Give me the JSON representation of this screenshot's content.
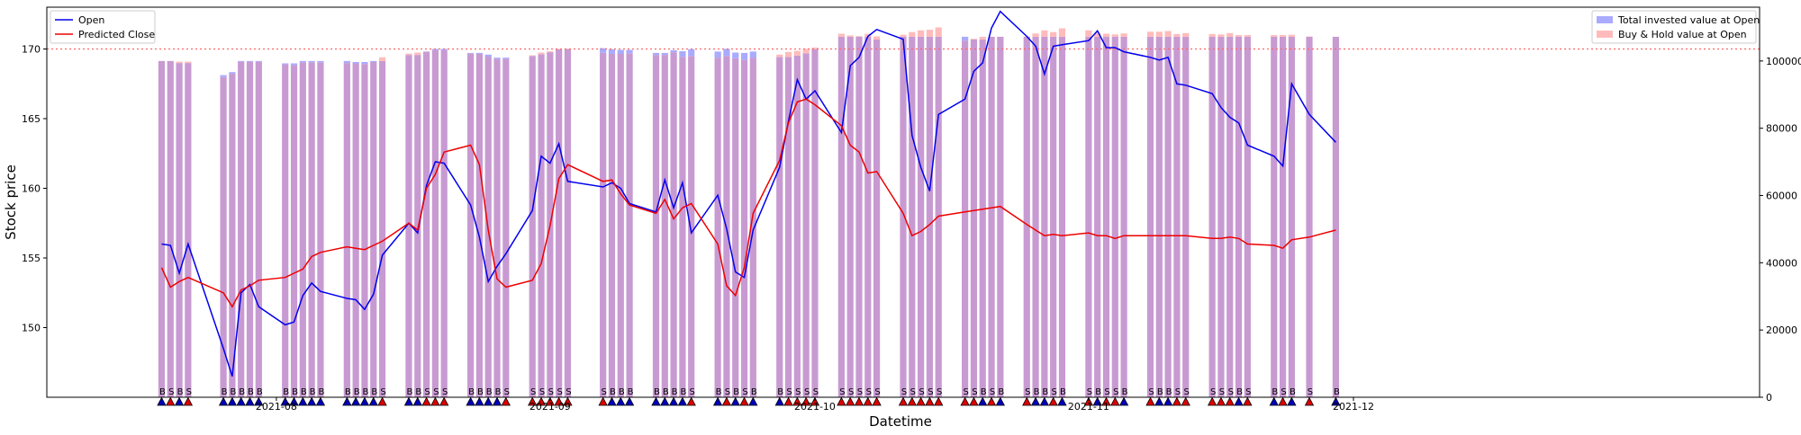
{
  "chart_data": {
    "type": "bar+line",
    "xlabel": "Datetime",
    "ylabel": "Stock price",
    "left_ylim": [
      145,
      173
    ],
    "right_ylim": [
      0,
      116000
    ],
    "left_yticks": [
      150,
      155,
      160,
      165,
      170
    ],
    "right_yticks": [
      0,
      20000,
      40000,
      60000,
      80000,
      100000
    ],
    "right_ytick_labels": [
      "0",
      "20000",
      "40000",
      "60000",
      "80000",
      "100000"
    ],
    "x_tick_labels": [
      "2021-08",
      "2021-09",
      "2021-10",
      "2021-11",
      "2021-12"
    ],
    "reference_line": {
      "left_value": 170,
      "right_value": 100000,
      "color": "#ff6666",
      "style": "dotted"
    },
    "legend_left": {
      "placement": "upper-left",
      "entries": [
        "Open",
        "Predicted Close"
      ]
    },
    "legend_right": {
      "placement": "upper-right",
      "entries": [
        "Total invested value at Open",
        "Buy & Hold value at Open"
      ]
    },
    "colors": {
      "open": "#0000ee",
      "predicted": "#ee0000",
      "invested": "#aaaaff",
      "buyhold": "#ffbbbb",
      "overlap": "#c89ad2",
      "buy_marker": "#0000bb",
      "sell_marker": "#dd0000"
    },
    "dates": [
      "07-19",
      "07-20",
      "07-21",
      "07-22",
      "07-26",
      "07-27",
      "07-28",
      "07-29",
      "07-30",
      "08-02",
      "08-03",
      "08-04",
      "08-05",
      "08-06",
      "08-09",
      "08-10",
      "08-11",
      "08-12",
      "08-13",
      "08-16",
      "08-17",
      "08-18",
      "08-19",
      "08-20",
      "08-23",
      "08-24",
      "08-25",
      "08-26",
      "08-27",
      "08-30",
      "08-31",
      "09-01",
      "09-02",
      "09-03",
      "09-07",
      "09-08",
      "09-09",
      "09-10",
      "09-13",
      "09-14",
      "09-15",
      "09-16",
      "09-17",
      "09-20",
      "09-21",
      "09-22",
      "09-23",
      "09-24",
      "09-27",
      "09-28",
      "09-29",
      "09-30",
      "10-01",
      "10-04",
      "10-05",
      "10-06",
      "10-07",
      "10-08",
      "10-11",
      "10-12",
      "10-13",
      "10-14",
      "10-15",
      "10-18",
      "10-19",
      "10-20",
      "10-21",
      "10-22",
      "10-25",
      "10-26",
      "10-27",
      "10-28",
      "10-29",
      "11-01",
      "11-02",
      "11-03",
      "11-04",
      "11-05",
      "11-08",
      "11-09",
      "11-10",
      "11-11",
      "11-12",
      "11-15",
      "11-16",
      "11-17",
      "11-18",
      "11-19",
      "11-22",
      "11-23",
      "11-24",
      "11-26",
      "11-29"
    ],
    "day_index": [
      0,
      1,
      2,
      3,
      7,
      8,
      9,
      10,
      11,
      14,
      15,
      16,
      17,
      18,
      21,
      22,
      23,
      24,
      25,
      28,
      29,
      30,
      31,
      32,
      35,
      36,
      37,
      38,
      39,
      42,
      43,
      44,
      45,
      46,
      50,
      51,
      52,
      53,
      56,
      57,
      58,
      59,
      60,
      63,
      64,
      65,
      66,
      67,
      70,
      71,
      72,
      73,
      74,
      77,
      78,
      79,
      80,
      81,
      84,
      85,
      86,
      87,
      88,
      91,
      92,
      93,
      94,
      95,
      98,
      99,
      100,
      101,
      102,
      105,
      106,
      107,
      108,
      109,
      112,
      113,
      114,
      115,
      116,
      119,
      120,
      121,
      122,
      123,
      126,
      127,
      128,
      130,
      133
    ],
    "open": [
      156.0,
      155.9,
      153.9,
      156.0,
      148.5,
      146.5,
      152.5,
      153.1,
      151.5,
      150.2,
      150.4,
      152.3,
      153.2,
      152.6,
      152.1,
      152.0,
      151.3,
      152.4,
      155.2,
      157.5,
      156.8,
      160.2,
      161.9,
      161.8,
      158.8,
      156.5,
      153.3,
      154.4,
      155.3,
      158.4,
      162.3,
      161.8,
      163.2,
      160.5,
      160.1,
      160.4,
      160.0,
      158.9,
      158.3,
      160.6,
      158.6,
      160.4,
      156.8,
      159.5,
      157.1,
      154.0,
      153.6,
      157.0,
      161.5,
      164.8,
      167.8,
      166.4,
      167.0,
      164.0,
      168.8,
      169.4,
      170.9,
      171.4,
      170.7,
      163.8,
      161.5,
      159.8,
      165.3,
      166.4,
      168.4,
      169.0,
      171.5,
      172.7,
      170.9,
      170.2,
      168.2,
      170.2,
      170.3,
      170.6,
      171.3,
      170.1,
      170.1,
      169.8,
      169.4,
      169.2,
      169.4,
      167.5,
      167.4,
      166.8,
      165.8,
      165.1,
      164.7,
      163.1,
      162.3,
      161.6,
      167.5,
      165.3,
      163.3
    ],
    "predicted_close": [
      154.3,
      152.9,
      153.3,
      153.6,
      152.5,
      151.5,
      152.7,
      153.0,
      153.4,
      153.6,
      153.9,
      154.2,
      155.1,
      155.4,
      155.8,
      155.7,
      155.6,
      155.9,
      156.2,
      157.5,
      157.0,
      160.0,
      161.0,
      162.6,
      163.1,
      161.7,
      157.0,
      153.5,
      152.9,
      153.4,
      154.6,
      157.3,
      160.7,
      161.7,
      160.5,
      160.6,
      159.6,
      158.8,
      158.2,
      159.2,
      157.8,
      158.6,
      158.9,
      156.0,
      153.0,
      152.3,
      154.3,
      158.2,
      162.0,
      164.7,
      166.2,
      166.4,
      166.0,
      164.5,
      163.1,
      162.6,
      161.1,
      161.2,
      158.2,
      156.6,
      156.9,
      157.4,
      158.0,
      158.3,
      158.4,
      158.5,
      158.6,
      158.7,
      157.4,
      157.0,
      156.6,
      156.7,
      156.6,
      156.8,
      156.6,
      156.6,
      156.4,
      156.6,
      156.6,
      156.6,
      156.6,
      156.6,
      156.6,
      156.4,
      156.4,
      156.5,
      156.4,
      156.0,
      155.9,
      155.7,
      156.3,
      156.5,
      157.0
    ],
    "total_invested": [
      100000,
      100000,
      99400,
      99400,
      95800,
      96700,
      100000,
      100000,
      100000,
      99300,
      99300,
      100000,
      100000,
      100000,
      100000,
      99700,
      99700,
      100000,
      100000,
      101800,
      101800,
      102800,
      103600,
      103600,
      102400,
      102400,
      101900,
      101000,
      101000,
      101500,
      102000,
      102600,
      103500,
      103500,
      103800,
      103500,
      103300,
      103300,
      102400,
      102400,
      103200,
      102900,
      103500,
      102800,
      103600,
      102500,
      102400,
      102800,
      101200,
      101200,
      101600,
      102300,
      103500,
      107200,
      107200,
      107200,
      107200,
      106400,
      107200,
      107200,
      107200,
      107200,
      107200,
      107200,
      106400,
      106400,
      107200,
      107200,
      107200,
      107200,
      107200,
      107200,
      107200,
      107200,
      107200,
      107200,
      107200,
      107200,
      107200,
      107200,
      107200,
      107200,
      107200,
      107200,
      107200,
      107200,
      107200,
      107200,
      107200,
      107200,
      107200,
      107200,
      107200
    ],
    "buy_hold": [
      100000,
      100000,
      99800,
      99800,
      95200,
      96200,
      99800,
      99800,
      99800,
      99000,
      98800,
      99600,
      99600,
      99600,
      99400,
      99300,
      99100,
      99700,
      101100,
      102200,
      102500,
      102800,
      103200,
      103200,
      102300,
      102100,
      101300,
      100600,
      100600,
      101700,
      102500,
      102900,
      103600,
      103700,
      102400,
      102100,
      102100,
      102300,
      101800,
      101800,
      102600,
      101200,
      101500,
      101000,
      101500,
      100800,
      100400,
      101000,
      101900,
      102700,
      103000,
      103600,
      104000,
      108100,
      107600,
      107400,
      108100,
      107300,
      107800,
      108600,
      109100,
      109300,
      110000,
      106000,
      106600,
      107200,
      107200,
      107200,
      107300,
      108200,
      109100,
      108600,
      109700,
      109100,
      108400,
      108100,
      107900,
      108200,
      108700,
      108700,
      108900,
      108000,
      108300,
      108000,
      107900,
      108300,
      107700,
      107700,
      107700,
      107700,
      107800,
      107300,
      107200
    ],
    "signals": [
      "B",
      "S",
      "B",
      "S",
      "B",
      "B",
      "B",
      "B",
      "B",
      "B",
      "B",
      "B",
      "B",
      "B",
      "B",
      "B",
      "B",
      "B",
      "S",
      "B",
      "B",
      "S",
      "S",
      "S",
      "B",
      "B",
      "B",
      "B",
      "S",
      "S",
      "S",
      "S",
      "S",
      "S",
      "S",
      "B",
      "B",
      "B",
      "B",
      "B",
      "B",
      "B",
      "S",
      "B",
      "S",
      "B",
      "S",
      "B",
      "B",
      "S",
      "S",
      "S",
      "S",
      "S",
      "S",
      "S",
      "S",
      "S",
      "S",
      "S",
      "S",
      "S",
      "S",
      "S",
      "S",
      "B",
      "S",
      "B",
      "S",
      "B",
      "B",
      "S",
      "B",
      "S",
      "B",
      "S",
      "S",
      "B",
      "S",
      "B",
      "B",
      "S",
      "S",
      "S",
      "S",
      "S",
      "B",
      "S",
      "B",
      "S",
      "B",
      "S",
      "B"
    ]
  }
}
